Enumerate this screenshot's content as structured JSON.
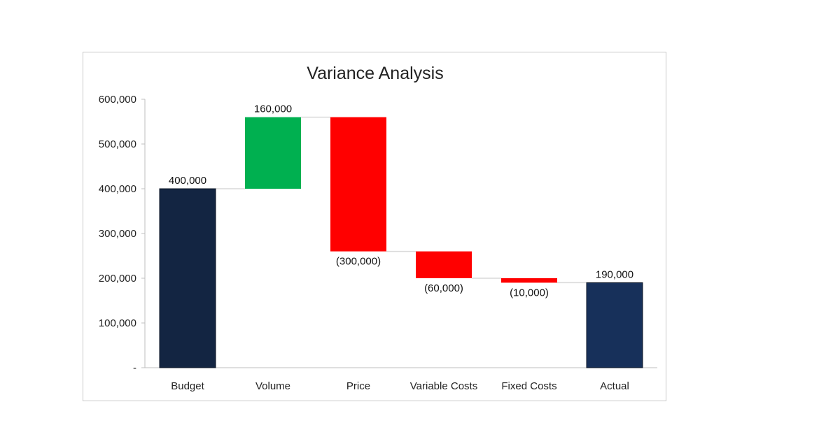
{
  "chart_data": {
    "type": "waterfall",
    "title": "Variance Analysis",
    "categories": [
      "Budget",
      "Volume",
      "Price",
      "Variable Costs",
      "Fixed Costs",
      "Actual"
    ],
    "values": [
      400000,
      160000,
      -300000,
      -60000,
      -10000,
      190000
    ],
    "kinds": [
      "total",
      "delta",
      "delta",
      "delta",
      "delta",
      "total"
    ],
    "data_labels": [
      "400,000",
      "160,000",
      "(300,000)",
      "(60,000)",
      "(10,000)",
      "190,000"
    ],
    "y_ticks": [
      0,
      100000,
      200000,
      300000,
      400000,
      500000,
      600000
    ],
    "y_tick_labels": [
      "-",
      "100,000",
      "200,000",
      "300,000",
      "400,000",
      "500,000",
      "600,000"
    ],
    "ylim": [
      0,
      600000
    ],
    "xlabel": "",
    "ylabel": "",
    "grid": false,
    "legend": "none",
    "colors": {
      "total_budget": "#132542",
      "total_actual": "#17305a",
      "increase": "#00b050",
      "decrease": "#ff0000",
      "connector": "#d9d9d9",
      "axis": "#bfbfbf"
    }
  }
}
